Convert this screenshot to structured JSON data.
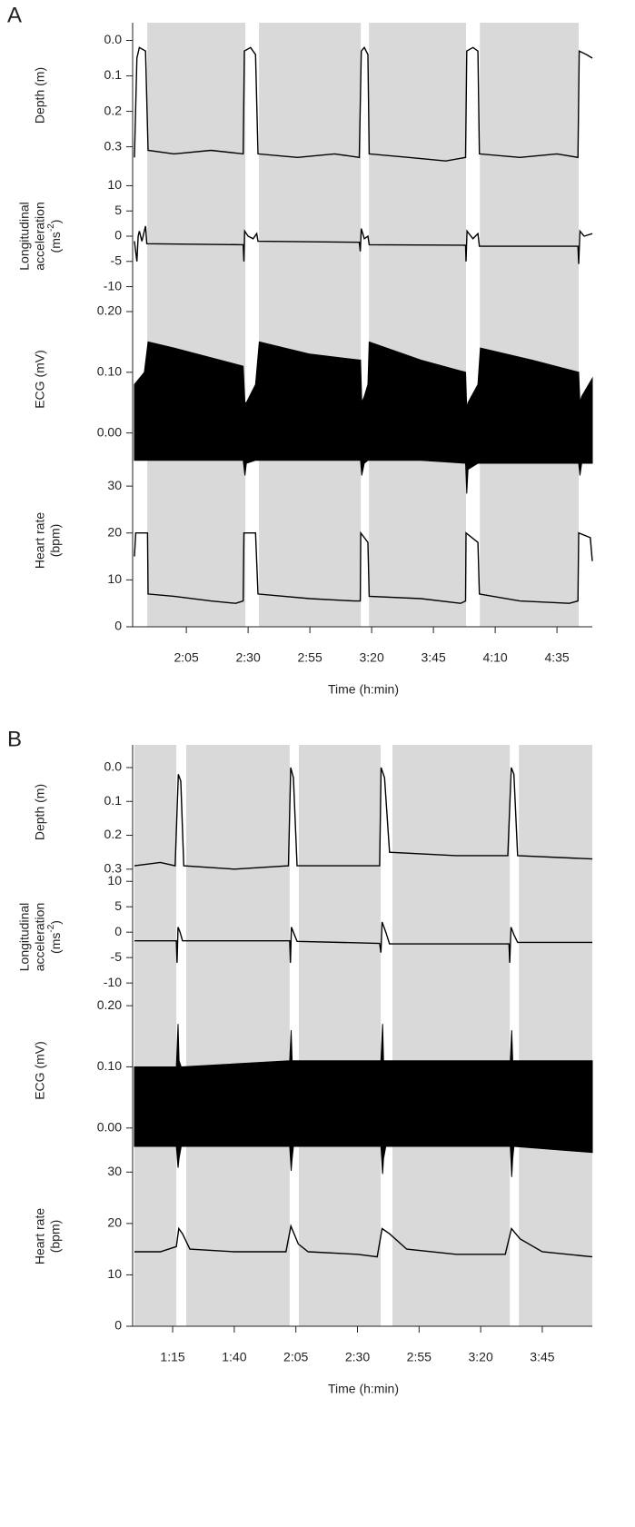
{
  "chart_data": [
    {
      "panel": "A",
      "xlim": [
        104,
        289.3
      ],
      "xticks": [
        {
          "value": 125,
          "label": "2:05"
        },
        {
          "value": 150,
          "label": "2:30"
        },
        {
          "value": 175,
          "label": "2:55"
        },
        {
          "value": 200,
          "label": "3:20"
        },
        {
          "value": 225,
          "label": "3:45"
        },
        {
          "value": 250,
          "label": "4:10"
        },
        {
          "value": 275,
          "label": "4:35"
        }
      ],
      "xlabel": "Time (h:min)",
      "shaded": [
        [
          109.2,
          148.9
        ],
        [
          154.4,
          195.6
        ],
        [
          198.9,
          238.2
        ],
        [
          243.8,
          283.8
        ]
      ],
      "subplots": [
        {
          "type": "line",
          "ylabel": [
            "Depth (m)"
          ],
          "inverted": true,
          "ylim": [
            -0.05,
            0.36
          ],
          "yticks": [
            {
              "value": 0,
              "label": "0.0"
            },
            0.1,
            0.2,
            0.3
          ],
          "x": [
            104,
            105,
            106,
            108.5,
            109.5,
            120,
            135,
            148,
            148.5,
            151,
            153,
            154,
            170,
            185,
            195,
            195.8,
            197,
            198.5,
            199,
            215,
            230,
            238,
            238.5,
            241,
            243,
            243.6,
            260,
            275,
            283.5,
            284,
            287,
            289.3
          ],
          "values": [
            0.33,
            0.05,
            0.02,
            0.03,
            0.31,
            0.32,
            0.31,
            0.32,
            0.03,
            0.02,
            0.04,
            0.32,
            0.33,
            0.32,
            0.33,
            0.03,
            0.02,
            0.04,
            0.32,
            0.33,
            0.34,
            0.33,
            0.03,
            0.02,
            0.03,
            0.32,
            0.33,
            0.32,
            0.33,
            0.03,
            0.04,
            0.05
          ]
        },
        {
          "type": "line",
          "ylabel": [
            "Longitudinal",
            "acceleration",
            [
              "(ms",
              "-2",
              ")"
            ]
          ],
          "ylim": [
            -13.5,
            13.5
          ],
          "yticks": [
            10,
            5,
            0,
            -5,
            -10
          ],
          "x": [
            104,
            105,
            105.5,
            106,
            107,
            108.5,
            109,
            148,
            148.3,
            148.6,
            150,
            152,
            153.5,
            154,
            195,
            195.4,
            195.8,
            197,
            198.5,
            199,
            238,
            238.2,
            238.6,
            241,
            243,
            243.6,
            283.5,
            283.8,
            284.3,
            286,
            289.3
          ],
          "values": [
            -1,
            -5,
            0,
            1,
            -1,
            2,
            -1.5,
            -1.7,
            -5,
            1,
            0,
            -0.5,
            0.5,
            -1,
            -1.2,
            -3,
            1.5,
            -0.5,
            0,
            -1.7,
            -1.8,
            -5,
            1,
            -0.5,
            0.5,
            -2,
            -2,
            -5.5,
            1,
            0,
            0.5
          ]
        },
        {
          "type": "band",
          "ylabel": [
            "ECG (mV)"
          ],
          "ylim": [
            -0.035,
            0.212
          ],
          "yticks": [
            {
              "value": 0,
              "label": "0.00"
            },
            {
              "value": 0.1,
              "label": "0.10"
            },
            {
              "value": 0.2,
              "label": "0.20"
            }
          ],
          "x": [
            104,
            108,
            109.5,
            120,
            148,
            148.7,
            149.3,
            153,
            154.5,
            175,
            195.5,
            196,
            197,
            198.5,
            199,
            220,
            238,
            238.5,
            239,
            243,
            244,
            265,
            283.8,
            284.3,
            285,
            289.3
          ],
          "values": [
            0.08,
            0.1,
            0.15,
            0.14,
            0.11,
            0.05,
            0.05,
            0.08,
            0.15,
            0.13,
            0.12,
            0.05,
            0.06,
            0.08,
            0.15,
            0.12,
            0.1,
            0.04,
            0.05,
            0.08,
            0.14,
            0.12,
            0.1,
            0.05,
            0.06,
            0.09
          ],
          "low": [
            -0.045,
            -0.045,
            -0.045,
            -0.045,
            -0.045,
            -0.07,
            -0.05,
            -0.045,
            -0.045,
            -0.045,
            -0.045,
            -0.07,
            -0.05,
            -0.045,
            -0.045,
            -0.045,
            -0.05,
            -0.1,
            -0.06,
            -0.05,
            -0.05,
            -0.05,
            -0.05,
            -0.07,
            -0.05,
            -0.05
          ]
        },
        {
          "type": "line",
          "ylabel": [
            "Heart rate",
            "(bpm)"
          ],
          "ylim": [
            0,
            36.8
          ],
          "yticks": [
            0,
            10,
            20,
            30
          ],
          "x": [
            104,
            104.5,
            107,
            109.3,
            109.5,
            120,
            135,
            145,
            148,
            148.3,
            153,
            154,
            175,
            193,
            195.4,
            195.6,
            198.5,
            199,
            220,
            236,
            238,
            238.2,
            243,
            243.6,
            260,
            280,
            283.5,
            283.8,
            288.5,
            289.3
          ],
          "values": [
            15,
            20,
            20,
            20,
            7,
            6.5,
            5.5,
            5,
            5.5,
            20,
            20,
            7,
            6,
            5.5,
            5.5,
            20,
            18,
            6.5,
            6,
            5,
            5.5,
            20,
            18,
            7,
            5.5,
            5,
            5.5,
            20,
            19,
            14
          ]
        }
      ]
    },
    {
      "panel": "B",
      "xlim": [
        59.5,
        245.3
      ],
      "xticks": [
        {
          "value": 75,
          "label": "1:15"
        },
        {
          "value": 100,
          "label": "1:40"
        },
        {
          "value": 125,
          "label": "2:05"
        },
        {
          "value": 150,
          "label": "2:30"
        },
        {
          "value": 175,
          "label": "2:55"
        },
        {
          "value": 200,
          "label": "3:20"
        },
        {
          "value": 225,
          "label": "3:45"
        }
      ],
      "xlabel": "Time (h:min)",
      "shaded": [
        [
          59.5,
          76.5
        ],
        [
          80.5,
          122.5
        ],
        [
          126.2,
          159.4
        ],
        [
          164.2,
          211.8
        ],
        [
          215.5,
          245.3
        ]
      ],
      "subplots": [
        {
          "type": "line",
          "ylabel": [
            "Depth (m)"
          ],
          "inverted": true,
          "ylim": [
            -0.067,
            0.33
          ],
          "yticks": [
            {
              "value": 0,
              "label": "0.0"
            },
            0.1,
            0.2,
            0.3
          ],
          "x": [
            59.5,
            70,
            76,
            77.3,
            78.3,
            79.5,
            100,
            122,
            122.9,
            124,
            125.5,
            145,
            159,
            159.6,
            161,
            163,
            190,
            211,
            212.4,
            213.5,
            215,
            245.3
          ],
          "values": [
            0.29,
            0.28,
            0.29,
            0.02,
            0.04,
            0.29,
            0.3,
            0.29,
            0,
            0.03,
            0.29,
            0.29,
            0.29,
            0,
            0.03,
            0.25,
            0.26,
            0.26,
            0,
            0.02,
            0.26,
            0.27
          ]
        },
        {
          "type": "line",
          "ylabel": [
            "Longitudinal",
            "acceleration",
            [
              "(ms",
              "-2",
              ")"
            ]
          ],
          "ylim": [
            -12.3,
            10.4
          ],
          "yticks": [
            10,
            5,
            0,
            -5,
            -10
          ],
          "x": [
            59.5,
            76.5,
            76.8,
            77.2,
            78,
            79,
            122.5,
            122.8,
            123.2,
            124,
            125.5,
            159,
            159.5,
            160,
            161.5,
            163,
            211.5,
            211.8,
            212.3,
            213.5,
            215,
            245.3
          ],
          "values": [
            -1.7,
            -1.7,
            -6,
            1,
            0,
            -1.7,
            -1.7,
            -6,
            1,
            0,
            -1.8,
            -2.2,
            -4,
            2,
            0,
            -2.3,
            -2.3,
            -6,
            1,
            -0.5,
            -2,
            -2
          ]
        },
        {
          "type": "band",
          "ylabel": [
            "ECG (mV)"
          ],
          "ylim": [
            -0.03,
            0.218
          ],
          "yticks": [
            {
              "value": 0,
              "label": "0.00"
            },
            {
              "value": 0.1,
              "label": "0.10"
            },
            {
              "value": 0.2,
              "label": "0.20"
            }
          ],
          "x": [
            59.5,
            76.5,
            77.2,
            77.6,
            78.5,
            122.5,
            123.1,
            123.5,
            124,
            159.5,
            160.2,
            160.6,
            161.5,
            212,
            212.6,
            213,
            213.5,
            245.3
          ],
          "values": [
            0.1,
            0.1,
            0.17,
            0.11,
            0.1,
            0.11,
            0.16,
            0.11,
            0.11,
            0.11,
            0.17,
            0.11,
            0.11,
            0.11,
            0.16,
            0.11,
            0.11,
            0.11
          ],
          "low": [
            -0.03,
            -0.03,
            -0.065,
            -0.05,
            -0.03,
            -0.03,
            -0.07,
            -0.05,
            -0.03,
            -0.03,
            -0.075,
            -0.05,
            -0.03,
            -0.03,
            -0.08,
            -0.05,
            -0.03,
            -0.04
          ]
        },
        {
          "type": "line",
          "ylabel": [
            "Heart rate",
            "(bpm)"
          ],
          "ylim": [
            0,
            35
          ],
          "yticks": [
            0,
            10,
            20,
            30
          ],
          "x": [
            59.5,
            70,
            76.5,
            77.5,
            79,
            82,
            100,
            121,
            123,
            126,
            130,
            150,
            158,
            160,
            163,
            170,
            190,
            210,
            212.5,
            216,
            225,
            245.3
          ],
          "values": [
            14.5,
            14.5,
            15.5,
            19,
            18,
            15,
            14.5,
            14.5,
            19.5,
            16,
            14.5,
            14,
            13.5,
            19,
            18,
            15,
            14,
            14,
            19,
            17,
            14.5,
            13.5
          ]
        }
      ]
    }
  ]
}
